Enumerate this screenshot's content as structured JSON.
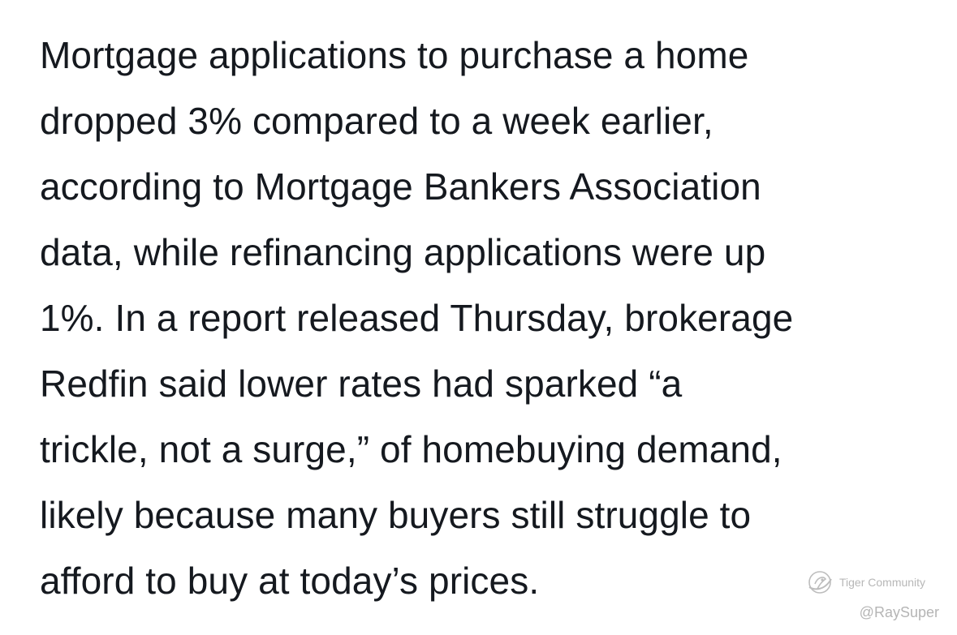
{
  "article": {
    "lines": [
      "Mortgage applications to purchase a home",
      "dropped 3% compared to a week earlier,",
      "according to Mortgage Bankers Association",
      "data, while refinancing applications were up",
      "1%. In a report released Thursday, brokerage",
      "Redfin said lower rates had sparked “a",
      "trickle, not a surge,” of homebuying demand,",
      "likely because many buyers still struggle to",
      "afford to buy at today’s prices."
    ]
  },
  "watermark": {
    "icon": "tiger-community-logo-icon",
    "text": "Tiger Community",
    "handle": "@RaySuper"
  },
  "colors": {
    "text": "#15191f",
    "background": "#ffffff",
    "watermark": "#b7b7b7"
  }
}
